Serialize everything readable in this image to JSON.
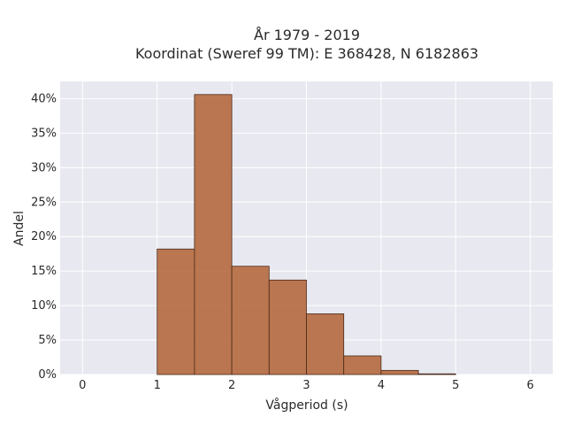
{
  "chart_data": {
    "type": "bar",
    "title_line1": "År 1979 - 2019",
    "title_line2": "Koordinat (Sweref 99 TM): E 368428, N 6182863",
    "xlabel": "Vågperiod (s)",
    "ylabel": "Andel",
    "xlim": [
      -0.3,
      6.3
    ],
    "ylim": [
      0,
      42.5
    ],
    "xticks": [
      0,
      1,
      2,
      3,
      4,
      5,
      6
    ],
    "yticks": [
      0,
      5,
      10,
      15,
      20,
      25,
      30,
      35,
      40
    ],
    "ytick_labels": [
      "0%",
      "5%",
      "10%",
      "15%",
      "20%",
      "25%",
      "30%",
      "35%",
      "40%"
    ],
    "grid": true,
    "bin_width": 0.5,
    "bins": [
      {
        "start": 1.0,
        "value": 18.2
      },
      {
        "start": 1.5,
        "value": 40.6
      },
      {
        "start": 2.0,
        "value": 15.7
      },
      {
        "start": 2.5,
        "value": 13.7
      },
      {
        "start": 3.0,
        "value": 8.8
      },
      {
        "start": 3.5,
        "value": 2.7
      },
      {
        "start": 4.0,
        "value": 0.6
      },
      {
        "start": 4.5,
        "value": 0.1
      }
    ],
    "colors": {
      "bar_fill": "#b5693e",
      "bar_stroke": "#4a2a18",
      "plot_bg": "#e8e8f0",
      "grid": "#ffffff"
    }
  }
}
